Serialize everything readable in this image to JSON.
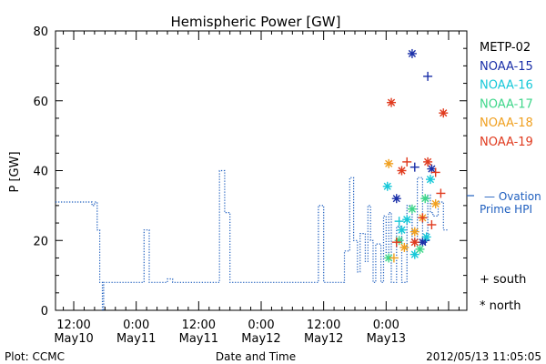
{
  "chart_data": {
    "type": "line",
    "title": "Hemispheric Power [GW]",
    "ylabel": "P [GW]",
    "xlabel": "Date and Time",
    "ylim": [
      0,
      80
    ],
    "yticks": [
      0,
      20,
      40,
      60,
      80
    ],
    "xticks": [
      {
        "time": "2012-05-10 12:00",
        "line1": "12:00",
        "line2": "May10"
      },
      {
        "time": "2012-05-11 00:00",
        "line1": "0:00",
        "line2": "May11"
      },
      {
        "time": "2012-05-11 12:00",
        "line1": "12:00",
        "line2": "May11"
      },
      {
        "time": "2012-05-12 00:00",
        "line1": "0:00",
        "line2": "May12"
      },
      {
        "time": "2012-05-12 12:00",
        "line1": "12:00",
        "line2": "May12"
      },
      {
        "time": "2012-05-13 00:00",
        "line1": "0:00",
        "line2": "May13"
      }
    ],
    "xlim": [
      "2012-05-10 08:30",
      "2012-05-13 15:30"
    ],
    "ovation": {
      "name": "Ovation Prime HPI",
      "label_line1": "— Ovation",
      "label_line2": "Prime HPI",
      "color": "#1f5fbf",
      "points": [
        [
          "2012-05-10 08:30",
          31
        ],
        [
          "2012-05-10 15:30",
          31
        ],
        [
          "2012-05-10 15:30",
          30
        ],
        [
          "2012-05-10 16:00",
          30
        ],
        [
          "2012-05-10 16:00",
          31
        ],
        [
          "2012-05-10 16:30",
          31
        ],
        [
          "2012-05-10 16:30",
          23
        ],
        [
          "2012-05-10 17:00",
          23
        ],
        [
          "2012-05-10 17:00",
          8
        ],
        [
          "2012-05-10 17:30",
          8
        ],
        [
          "2012-05-10 17:30",
          0
        ],
        [
          "2012-05-10 17:45",
          0
        ],
        [
          "2012-05-10 17:45",
          8
        ],
        [
          "2012-05-11 01:30",
          8
        ],
        [
          "2012-05-11 01:30",
          23
        ],
        [
          "2012-05-11 02:30",
          23
        ],
        [
          "2012-05-11 02:30",
          8
        ],
        [
          "2012-05-11 06:00",
          8
        ],
        [
          "2012-05-11 06:00",
          9
        ],
        [
          "2012-05-11 07:00",
          9
        ],
        [
          "2012-05-11 07:00",
          8
        ],
        [
          "2012-05-11 16:00",
          8
        ],
        [
          "2012-05-11 16:00",
          40
        ],
        [
          "2012-05-11 17:00",
          40
        ],
        [
          "2012-05-11 17:00",
          28
        ],
        [
          "2012-05-11 18:00",
          28
        ],
        [
          "2012-05-11 18:00",
          8
        ],
        [
          "2012-05-12 11:00",
          8
        ],
        [
          "2012-05-12 11:00",
          30
        ],
        [
          "2012-05-12 12:00",
          30
        ],
        [
          "2012-05-12 12:00",
          8
        ],
        [
          "2012-05-12 16:00",
          8
        ],
        [
          "2012-05-12 16:00",
          17
        ],
        [
          "2012-05-12 17:00",
          17
        ],
        [
          "2012-05-12 17:00",
          38
        ],
        [
          "2012-05-12 17:45",
          38
        ],
        [
          "2012-05-12 17:45",
          20
        ],
        [
          "2012-05-12 18:30",
          20
        ],
        [
          "2012-05-12 18:30",
          11
        ],
        [
          "2012-05-12 19:00",
          11
        ],
        [
          "2012-05-12 19:00",
          22
        ],
        [
          "2012-05-12 20:00",
          22
        ],
        [
          "2012-05-12 20:00",
          14
        ],
        [
          "2012-05-12 20:30",
          14
        ],
        [
          "2012-05-12 20:30",
          30
        ],
        [
          "2012-05-12 21:00",
          30
        ],
        [
          "2012-05-12 21:00",
          20
        ],
        [
          "2012-05-12 21:30",
          20
        ],
        [
          "2012-05-12 21:30",
          8
        ],
        [
          "2012-05-12 22:00",
          8
        ],
        [
          "2012-05-12 22:00",
          19
        ],
        [
          "2012-05-12 23:00",
          19
        ],
        [
          "2012-05-12 23:00",
          8
        ],
        [
          "2012-05-12 23:30",
          8
        ],
        [
          "2012-05-12 23:30",
          27
        ],
        [
          "2012-05-13 00:00",
          27
        ],
        [
          "2012-05-13 00:00",
          15
        ],
        [
          "2012-05-13 00:30",
          15
        ],
        [
          "2012-05-13 00:30",
          28
        ],
        [
          "2012-05-13 01:00",
          28
        ],
        [
          "2012-05-13 01:00",
          8
        ],
        [
          "2012-05-13 02:00",
          8
        ],
        [
          "2012-05-13 02:00",
          24
        ],
        [
          "2012-05-13 03:00",
          24
        ],
        [
          "2012-05-13 03:00",
          8
        ],
        [
          "2012-05-13 04:00",
          8
        ],
        [
          "2012-05-13 04:00",
          30
        ],
        [
          "2012-05-13 05:00",
          30
        ],
        [
          "2012-05-13 05:00",
          20
        ],
        [
          "2012-05-13 06:00",
          20
        ],
        [
          "2012-05-13 06:00",
          38
        ],
        [
          "2012-05-13 07:00",
          38
        ],
        [
          "2012-05-13 07:00",
          20
        ],
        [
          "2012-05-13 08:00",
          20
        ],
        [
          "2012-05-13 08:00",
          33
        ],
        [
          "2012-05-13 08:30",
          33
        ],
        [
          "2012-05-13 08:30",
          28
        ],
        [
          "2012-05-13 09:00",
          28
        ],
        [
          "2012-05-13 09:00",
          27
        ],
        [
          "2012-05-13 10:00",
          27
        ],
        [
          "2012-05-13 10:00",
          31
        ],
        [
          "2012-05-13 11:00",
          31
        ],
        [
          "2012-05-13 11:00",
          23
        ],
        [
          "2012-05-13 12:00",
          23
        ]
      ]
    },
    "satellites": [
      {
        "name": "METP-02",
        "color": "#000000",
        "points": []
      },
      {
        "name": "NOAA-15",
        "color": "#1a2fa8",
        "points": [
          {
            "time": "2012-05-13 02:00",
            "value": 32,
            "marker": "*"
          },
          {
            "time": "2012-05-13 05:00",
            "value": 73.5,
            "marker": "*"
          },
          {
            "time": "2012-05-13 05:30",
            "value": 41,
            "marker": "+"
          },
          {
            "time": "2012-05-13 07:00",
            "value": 19.5,
            "marker": "*"
          },
          {
            "time": "2012-05-13 07:30",
            "value": 20,
            "marker": "+"
          },
          {
            "time": "2012-05-13 08:00",
            "value": 67,
            "marker": "+"
          },
          {
            "time": "2012-05-13 08:45",
            "value": 40.5,
            "marker": "*"
          }
        ]
      },
      {
        "name": "NOAA-16",
        "color": "#16c8d8",
        "points": [
          {
            "time": "2012-05-13 00:15",
            "value": 35.5,
            "marker": "*"
          },
          {
            "time": "2012-05-13 02:30",
            "value": 25.5,
            "marker": "+"
          },
          {
            "time": "2012-05-13 03:00",
            "value": 23,
            "marker": "*"
          },
          {
            "time": "2012-05-13 04:00",
            "value": 26,
            "marker": "*"
          },
          {
            "time": "2012-05-13 05:30",
            "value": 16,
            "marker": "*"
          },
          {
            "time": "2012-05-13 07:45",
            "value": 21,
            "marker": "*"
          },
          {
            "time": "2012-05-13 08:30",
            "value": 37.5,
            "marker": "*"
          }
        ]
      },
      {
        "name": "NOAA-17",
        "color": "#3ed68a",
        "points": [
          {
            "time": "2012-05-13 00:30",
            "value": 15,
            "marker": "*"
          },
          {
            "time": "2012-05-13 02:30",
            "value": 20,
            "marker": "*"
          },
          {
            "time": "2012-05-13 05:00",
            "value": 29,
            "marker": "*"
          },
          {
            "time": "2012-05-13 06:30",
            "value": 17.5,
            "marker": "*"
          },
          {
            "time": "2012-05-13 07:30",
            "value": 32,
            "marker": "*"
          }
        ]
      },
      {
        "name": "NOAA-18",
        "color": "#f0a020",
        "points": [
          {
            "time": "2012-05-13 00:30",
            "value": 42,
            "marker": "*"
          },
          {
            "time": "2012-05-13 01:30",
            "value": 15,
            "marker": "+"
          },
          {
            "time": "2012-05-13 03:30",
            "value": 18,
            "marker": "*"
          },
          {
            "time": "2012-05-13 05:30",
            "value": 22.5,
            "marker": "*"
          },
          {
            "time": "2012-05-13 07:00",
            "value": 26.5,
            "marker": "*"
          },
          {
            "time": "2012-05-13 09:30",
            "value": 30.5,
            "marker": "*"
          }
        ]
      },
      {
        "name": "NOAA-19",
        "color": "#e03a1e",
        "points": [
          {
            "time": "2012-05-13 01:00",
            "value": 59.5,
            "marker": "*"
          },
          {
            "time": "2012-05-13 02:00",
            "value": 19.5,
            "marker": "+"
          },
          {
            "time": "2012-05-13 03:00",
            "value": 40,
            "marker": "*"
          },
          {
            "time": "2012-05-13 04:00",
            "value": 42.5,
            "marker": "+"
          },
          {
            "time": "2012-05-13 05:30",
            "value": 19.5,
            "marker": "*"
          },
          {
            "time": "2012-05-13 07:00",
            "value": 26.5,
            "marker": "+"
          },
          {
            "time": "2012-05-13 08:00",
            "value": 42.5,
            "marker": "*"
          },
          {
            "time": "2012-05-13 08:45",
            "value": 24.5,
            "marker": "+"
          },
          {
            "time": "2012-05-13 09:30",
            "value": 39.5,
            "marker": "+"
          },
          {
            "time": "2012-05-13 10:30",
            "value": 33.5,
            "marker": "+"
          },
          {
            "time": "2012-05-13 11:00",
            "value": 56.5,
            "marker": "*"
          }
        ]
      }
    ],
    "marker_legend": [
      {
        "symbol": "+",
        "label": "south"
      },
      {
        "symbol": "*",
        "label": "north"
      }
    ]
  },
  "footer": {
    "left": "Plot: CCMC",
    "center": "Date and Time",
    "right": "2012/05/13 11:05:05"
  }
}
